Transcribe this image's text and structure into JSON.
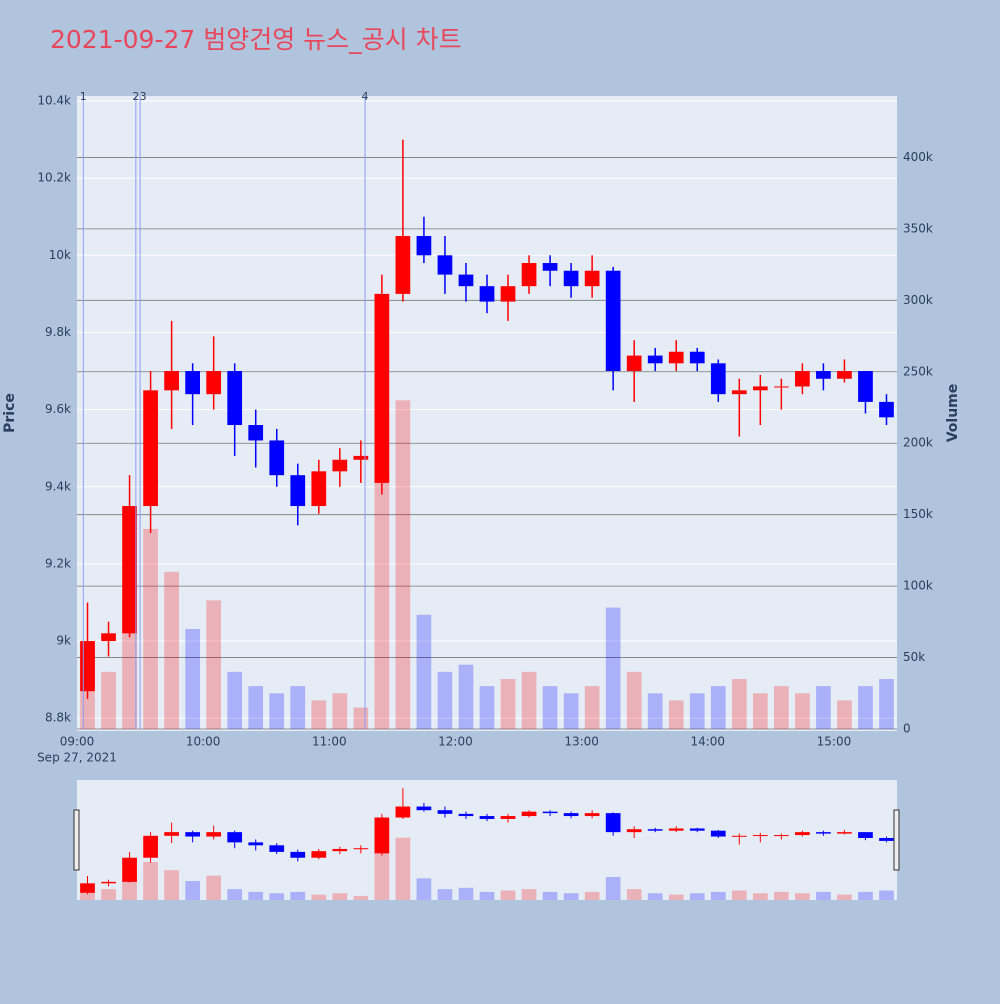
{
  "chart_data": {
    "type": "candlestick",
    "title": "2021-09-27 범양건영 뉴스_공시 차트",
    "y_label": "Price",
    "y2_label": "Volume",
    "x": [
      "09:00",
      "09:10",
      "09:20",
      "09:30",
      "09:40",
      "09:50",
      "10:00",
      "10:10",
      "10:20",
      "10:30",
      "10:40",
      "10:50",
      "11:00",
      "11:10",
      "11:20",
      "11:30",
      "11:40",
      "11:50",
      "12:00",
      "12:10",
      "12:20",
      "12:30",
      "12:40",
      "12:50",
      "13:00",
      "13:10",
      "13:20",
      "13:30",
      "13:40",
      "13:50",
      "14:00",
      "14:10",
      "14:20",
      "14:30",
      "14:40",
      "14:50",
      "15:00",
      "15:10",
      "15:20"
    ],
    "open": [
      8870,
      9000,
      9020,
      9350,
      9650,
      9700,
      9640,
      9700,
      9560,
      9520,
      9430,
      9350,
      9440,
      9470,
      9410,
      9900,
      10050,
      10000,
      9950,
      9920,
      9880,
      9920,
      9980,
      9960,
      9920,
      9960,
      9700,
      9740,
      9720,
      9750,
      9720,
      9640,
      9650,
      9660,
      9660,
      9700,
      9680,
      9700,
      9620
    ],
    "high": [
      9100,
      9050,
      9430,
      9700,
      9830,
      9720,
      9790,
      9720,
      9600,
      9550,
      9460,
      9470,
      9500,
      9520,
      9950,
      10300,
      10100,
      10050,
      9980,
      9950,
      9950,
      10000,
      10000,
      9980,
      10000,
      9970,
      9780,
      9760,
      9780,
      9760,
      9730,
      9680,
      9690,
      9680,
      9720,
      9720,
      9730,
      9700,
      9640
    ],
    "low": [
      8850,
      8960,
      9010,
      9280,
      9550,
      9560,
      9600,
      9480,
      9450,
      9400,
      9300,
      9330,
      9400,
      9410,
      9380,
      9880,
      9980,
      9900,
      9880,
      9850,
      9830,
      9900,
      9920,
      9890,
      9890,
      9650,
      9620,
      9700,
      9700,
      9700,
      9620,
      9530,
      9560,
      9600,
      9640,
      9650,
      9670,
      9590,
      9560
    ],
    "close": [
      9000,
      9020,
      9350,
      9650,
      9700,
      9640,
      9700,
      9560,
      9520,
      9430,
      9350,
      9440,
      9470,
      9480,
      9900,
      10050,
      10000,
      9950,
      9920,
      9880,
      9920,
      9980,
      9960,
      9920,
      9960,
      9700,
      9740,
      9720,
      9750,
      9720,
      9640,
      9650,
      9660,
      9660,
      9700,
      9680,
      9700,
      9620,
      9580
    ],
    "volume": [
      60000,
      40000,
      90000,
      140000,
      110000,
      70000,
      90000,
      40000,
      30000,
      25000,
      30000,
      20000,
      25000,
      15000,
      180000,
      230000,
      80000,
      40000,
      45000,
      30000,
      35000,
      40000,
      30000,
      25000,
      30000,
      85000,
      40000,
      25000,
      20000,
      25000,
      30000,
      35000,
      25000,
      30000,
      25000,
      30000,
      20000,
      30000,
      35000
    ],
    "increasing_color": "#ff0000",
    "decreasing_color": "#0000ff",
    "events": [
      {
        "x": "09:03",
        "label": "1"
      },
      {
        "x": "09:28",
        "label": "2"
      },
      {
        "x": "09:30",
        "label": "3"
      },
      {
        "x": "11:17",
        "label": "4"
      }
    ],
    "xlim": [
      "09:00",
      "15:30"
    ],
    "xticks": [
      "09:00",
      "10:00",
      "11:00",
      "12:00",
      "13:00",
      "14:00",
      "15:00"
    ],
    "x_date": "Sep 27, 2021",
    "ylim": [
      8772,
      10413
    ],
    "yticks": [
      {
        "value": 8800,
        "label": "8.8k"
      },
      {
        "value": 9000,
        "label": "9k"
      },
      {
        "value": 9200,
        "label": "9.2k"
      },
      {
        "value": 9400,
        "label": "9.4k"
      },
      {
        "value": 9600,
        "label": "9.6k"
      },
      {
        "value": 9800,
        "label": "9.8k"
      },
      {
        "value": 10000,
        "label": "10k"
      },
      {
        "value": 10200,
        "label": "10.2k"
      },
      {
        "value": 10400,
        "label": "10.4k"
      }
    ],
    "y2lim": [
      0,
      443000
    ],
    "y2ticks": [
      0,
      {
        "value": 50000,
        "label": "50k"
      },
      {
        "value": 100000,
        "label": "100k"
      },
      {
        "value": 150000,
        "label": "150k"
      },
      {
        "value": 200000,
        "label": "200k"
      },
      {
        "value": 250000,
        "label": "250k"
      },
      {
        "value": 300000,
        "label": "300k"
      },
      {
        "value": 350000,
        "label": "350k"
      },
      {
        "value": 400000,
        "label": "400k"
      }
    ],
    "grid": true,
    "range_slider": true
  }
}
